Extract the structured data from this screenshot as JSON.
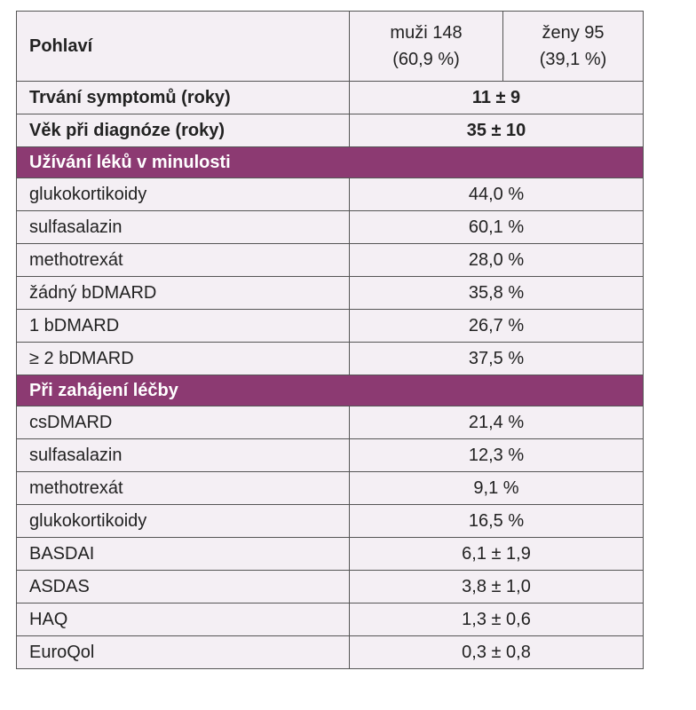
{
  "table": {
    "header": {
      "label": "Pohlaví",
      "male": "muži 148",
      "male_pct": "(60,9 %)",
      "female": "ženy 95",
      "female_pct": "(39,1 %)"
    },
    "summary_rows": [
      [
        "Trvání symptomů (roky)",
        "11 ± 9"
      ],
      [
        "Věk při diagnóze (roky)",
        "35 ± 10"
      ]
    ],
    "sections": [
      {
        "title": "Užívání léků v minulosti",
        "rows": [
          [
            "glukokortikoidy",
            "44,0 %"
          ],
          [
            "sulfasalazin",
            "60,1 %"
          ],
          [
            "methotrexát",
            "28,0 %"
          ],
          [
            "žádný bDMARD",
            "35,8 %"
          ],
          [
            "1 bDMARD",
            "26,7 %"
          ],
          [
            "≥ 2 bDMARD",
            "37,5 %"
          ]
        ]
      },
      {
        "title": "Při zahájení léčby",
        "rows": [
          [
            "csDMARD",
            "21,4 %"
          ],
          [
            "sulfasalazin",
            "12,3 %"
          ],
          [
            "methotrexát",
            "9,1 %"
          ],
          [
            "glukokortikoidy",
            "16,5 %"
          ],
          [
            "BASDAI",
            "6,1 ± 1,9"
          ],
          [
            "ASDAS",
            "3,8 ± 1,0"
          ],
          [
            "HAQ",
            "1,3 ± 0,6"
          ],
          [
            "EuroQol",
            "0,3 ± 0,8"
          ]
        ]
      }
    ]
  }
}
